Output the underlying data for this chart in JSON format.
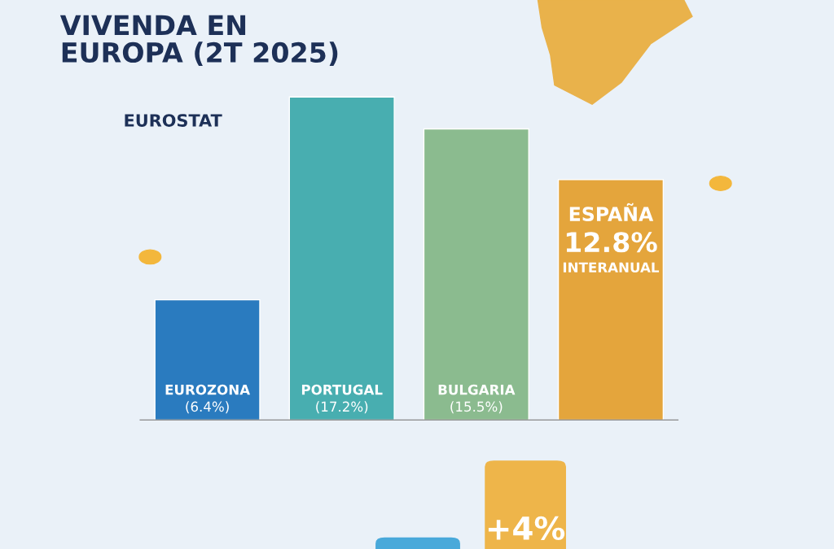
{
  "chart_data": {
    "type": "bar",
    "title": "VIVENDA EN\nEUROPA (2T 2025)",
    "categories": [
      "EUROZONA",
      "PORTUGAL",
      "BULGARIA",
      "ESPAÑA"
    ],
    "values": [
      6.4,
      17.2,
      15.5,
      12.8
    ],
    "colors": [
      "#2a7bbf",
      "#48aeb0",
      "#8bbb8f",
      "#e4a53c"
    ],
    "value_labels": [
      "(6.4%)",
      "(17.2%)",
      "(15.5%)",
      "12.8%"
    ],
    "annotations": [
      "EUROSTAT",
      "INTERANUAL",
      "+4%"
    ]
  }
}
